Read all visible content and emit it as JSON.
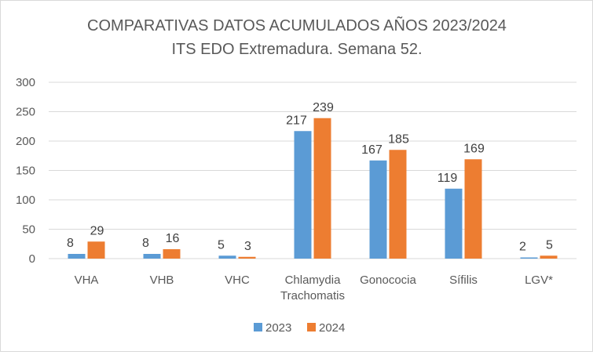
{
  "chart_data": {
    "type": "bar",
    "title": "COMPARATIVAS DATOS ACUMULADOS AÑOS 2023/2024",
    "subtitle": "ITS EDO Extremadura. Semana 52.",
    "xlabel": "",
    "ylabel": "",
    "ylim": [
      0,
      300
    ],
    "yticks": [
      0,
      50,
      100,
      150,
      200,
      250,
      300
    ],
    "grid": true,
    "legend_position": "bottom",
    "categories": [
      [
        "VHA"
      ],
      [
        "VHB"
      ],
      [
        "VHC"
      ],
      [
        "Chlamydia",
        "Trachomatis"
      ],
      [
        "Gonococia"
      ],
      [
        "Sífilis"
      ],
      [
        "LGV*"
      ]
    ],
    "series": [
      {
        "name": "2023",
        "color": "#5b9bd5",
        "values": [
          8,
          8,
          5,
          217,
          167,
          119,
          2
        ]
      },
      {
        "name": "2024",
        "color": "#ed7d31",
        "values": [
          29,
          16,
          3,
          239,
          185,
          169,
          5
        ]
      }
    ]
  }
}
